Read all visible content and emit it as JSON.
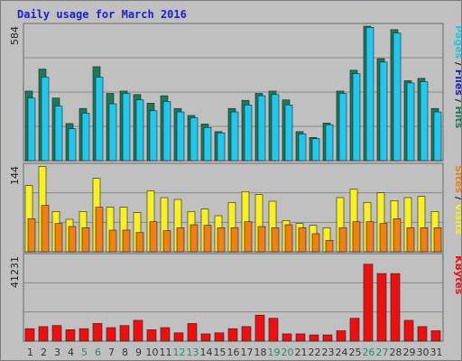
{
  "title": "Daily usage for March 2016",
  "colors": {
    "pages_fill": "#1a7a5a",
    "files_fill": "#20c8f0",
    "visits_fill": "#f8f020",
    "sites_fill": "#f08010",
    "kbytes_fill": "#ee1010",
    "bg": "#c0c0c0",
    "grid": "#8a8a8a",
    "weekend_label": "#2a8a6a",
    "label_default": "#333333"
  },
  "chart_data": [
    {
      "type": "bar",
      "name": "hits-files-pages",
      "ymax_label": "584",
      "ylim": [
        0,
        584
      ],
      "legend": [
        {
          "text": "Pages",
          "color": "#20c8f0"
        },
        {
          "text": "Files",
          "color": "#1d1fc8"
        },
        {
          "text": "Hits",
          "color": "#1a7a5a"
        }
      ],
      "categories": [
        "1",
        "2",
        "3",
        "4",
        "5",
        "6",
        "7",
        "8",
        "9",
        "10",
        "11",
        "12",
        "13",
        "14",
        "15",
        "16",
        "17",
        "18",
        "19",
        "20",
        "21",
        "22",
        "23",
        "24",
        "25",
        "26",
        "27",
        "28",
        "29",
        "30",
        "31"
      ],
      "series": [
        {
          "name": "Hits",
          "values": [
            300,
            395,
            270,
            160,
            225,
            405,
            290,
            300,
            285,
            248,
            280,
            225,
            195,
            158,
            125,
            225,
            260,
            290,
            300,
            262,
            125,
            100,
            162,
            300,
            390,
            580,
            440,
            565,
            345,
            355,
            225
          ]
        },
        {
          "name": "Files",
          "values": [
            270,
            360,
            235,
            138,
            205,
            360,
            245,
            290,
            262,
            215,
            255,
            210,
            185,
            143,
            120,
            210,
            240,
            280,
            285,
            240,
            115,
            95,
            155,
            290,
            375,
            575,
            425,
            550,
            335,
            340,
            210
          ]
        },
        {
          "name": "Pages",
          "values": [
            0,
            0,
            0,
            0,
            0,
            0,
            0,
            0,
            0,
            0,
            0,
            0,
            0,
            0,
            0,
            0,
            0,
            0,
            0,
            0,
            0,
            0,
            0,
            0,
            0,
            0,
            0,
            0,
            0,
            0,
            0
          ]
        }
      ]
    },
    {
      "type": "bar",
      "name": "visits-sites",
      "ymax_label": "144",
      "ylim": [
        0,
        144
      ],
      "legend": [
        {
          "text": "Sites",
          "color": "#f08010"
        },
        {
          "text": "Visits",
          "color": "#f8f020"
        }
      ],
      "categories": [
        "1",
        "2",
        "3",
        "4",
        "5",
        "6",
        "7",
        "8",
        "9",
        "10",
        "11",
        "12",
        "13",
        "14",
        "15",
        "16",
        "17",
        "18",
        "19",
        "20",
        "21",
        "22",
        "23",
        "24",
        "25",
        "26",
        "27",
        "28",
        "29",
        "30",
        "31"
      ],
      "series": [
        {
          "name": "Visits",
          "values": [
            110,
            142,
            67,
            54,
            67,
            122,
            74,
            74,
            65,
            101,
            90,
            87,
            67,
            71,
            60,
            82,
            100,
            95,
            84,
            52,
            47,
            44,
            40,
            90,
            104,
            82,
            98,
            85,
            90,
            92,
            67
          ]
        },
        {
          "name": "Sites",
          "values": [
            55,
            77,
            47,
            42,
            40,
            74,
            36,
            36,
            32,
            50,
            35,
            40,
            45,
            44,
            40,
            40,
            50,
            42,
            40,
            45,
            40,
            30,
            19,
            40,
            50,
            50,
            47,
            55,
            40,
            40,
            40
          ]
        }
      ]
    },
    {
      "type": "bar",
      "name": "kbytes",
      "ymax_label": "41231",
      "ylim": [
        0,
        41231
      ],
      "legend": [
        {
          "text": "KBytes",
          "color": "#ee1010"
        }
      ],
      "categories": [
        "1",
        "2",
        "3",
        "4",
        "5",
        "6",
        "7",
        "8",
        "9",
        "10",
        "11",
        "12",
        "13",
        "14",
        "15",
        "16",
        "17",
        "18",
        "19",
        "20",
        "21",
        "22",
        "23",
        "24",
        "25",
        "26",
        "27",
        "28",
        "29",
        "30",
        "31"
      ],
      "series": [
        {
          "name": "KBytes",
          "values": [
            6000,
            7000,
            7500,
            5500,
            6000,
            8500,
            6500,
            7500,
            10000,
            5500,
            6500,
            4000,
            8500,
            3500,
            4000,
            6000,
            7000,
            12500,
            11000,
            3500,
            3500,
            3000,
            3000,
            5000,
            11000,
            37000,
            32500,
            32500,
            10000,
            7000,
            5000
          ]
        }
      ]
    }
  ],
  "x_axis": {
    "labels": [
      "1",
      "2",
      "3",
      "4",
      "5",
      "6",
      "7",
      "8",
      "9",
      "10",
      "11",
      "12",
      "13",
      "14",
      "15",
      "16",
      "17",
      "18",
      "19",
      "20",
      "21",
      "22",
      "23",
      "24",
      "25",
      "26",
      "27",
      "28",
      "29",
      "30",
      "31"
    ],
    "weekend": [
      5,
      6,
      12,
      13,
      19,
      20,
      26,
      27
    ]
  }
}
